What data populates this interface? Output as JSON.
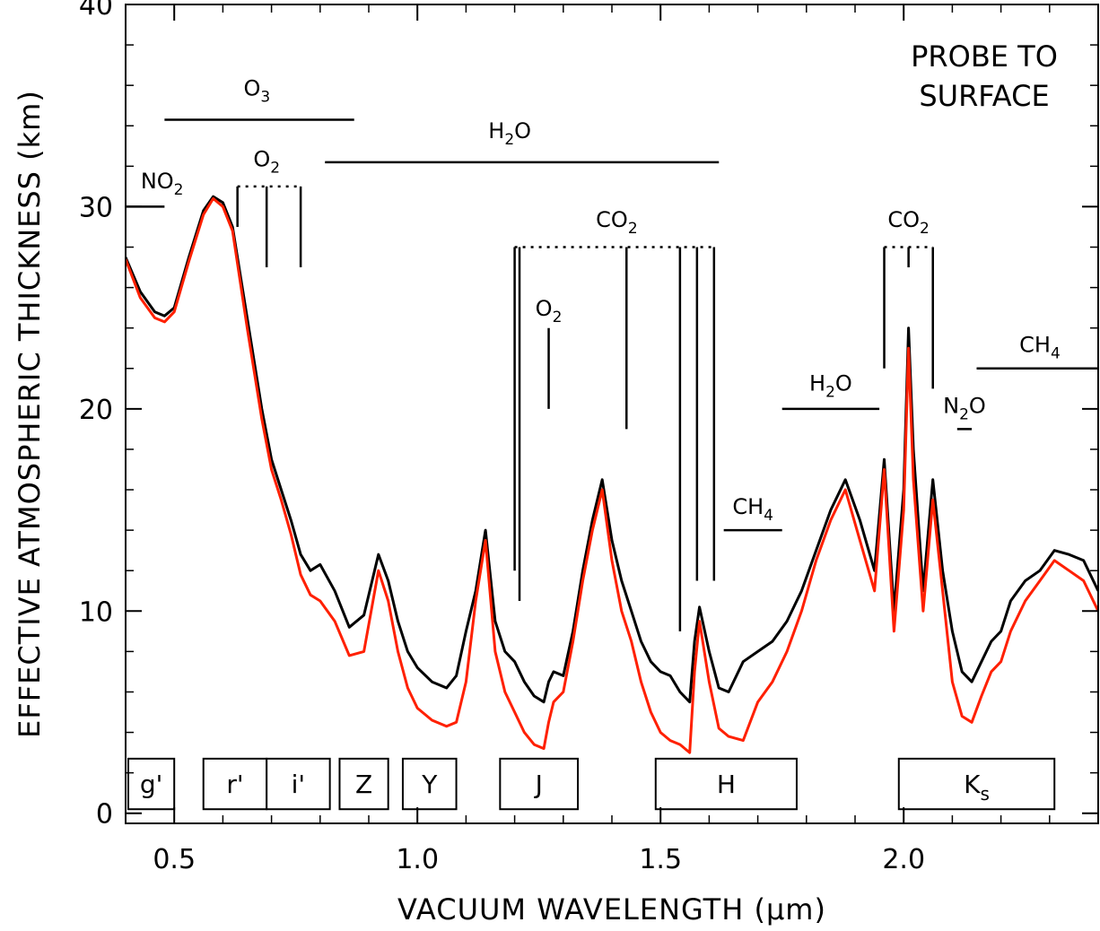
{
  "chart_data": {
    "type": "line",
    "title": "",
    "corner_text": [
      "PROBE TO",
      "SURFACE"
    ],
    "xlabel": "VACUUM WAVELENGTH (μm)",
    "ylabel": "EFFECTIVE ATMOSPHERIC THICKNESS (km)",
    "xlim": [
      0.4,
      2.4
    ],
    "ylim": [
      -0.5,
      40
    ],
    "x_ticks": [
      {
        "value": 0.5,
        "label": "0.5"
      },
      {
        "value": 1.0,
        "label": "1.0"
      },
      {
        "value": 1.5,
        "label": "1.5"
      },
      {
        "value": 2.0,
        "label": "2.0"
      }
    ],
    "y_ticks": [
      {
        "value": 0,
        "label": "0"
      },
      {
        "value": 10,
        "label": "10"
      },
      {
        "value": 20,
        "label": "20"
      },
      {
        "value": 30,
        "label": "30"
      },
      {
        "value": 40,
        "label": "40"
      }
    ],
    "grid": false,
    "colors": {
      "series_black": "#000000",
      "series_red": "#ff2000"
    },
    "series": [
      {
        "color": "#000000",
        "x": [
          0.4,
          0.43,
          0.46,
          0.48,
          0.5,
          0.53,
          0.56,
          0.58,
          0.6,
          0.62,
          0.65,
          0.68,
          0.7,
          0.72,
          0.74,
          0.76,
          0.78,
          0.8,
          0.83,
          0.86,
          0.89,
          0.92,
          0.94,
          0.96,
          0.98,
          1.0,
          1.03,
          1.06,
          1.08,
          1.1,
          1.12,
          1.14,
          1.16,
          1.18,
          1.2,
          1.22,
          1.24,
          1.26,
          1.27,
          1.28,
          1.3,
          1.32,
          1.34,
          1.36,
          1.38,
          1.4,
          1.42,
          1.44,
          1.46,
          1.48,
          1.5,
          1.52,
          1.54,
          1.56,
          1.57,
          1.58,
          1.6,
          1.62,
          1.64,
          1.67,
          1.7,
          1.73,
          1.76,
          1.79,
          1.82,
          1.85,
          1.88,
          1.91,
          1.94,
          1.96,
          1.98,
          2.0,
          2.01,
          2.02,
          2.04,
          2.06,
          2.08,
          2.1,
          2.12,
          2.14,
          2.16,
          2.18,
          2.2,
          2.22,
          2.25,
          2.28,
          2.31,
          2.34,
          2.37,
          2.4
        ],
        "y": [
          27.5,
          25.8,
          24.8,
          24.6,
          25.0,
          27.5,
          29.8,
          30.5,
          30.2,
          29.0,
          24.5,
          20.0,
          17.5,
          16.0,
          14.5,
          12.8,
          12.0,
          12.3,
          11.0,
          9.2,
          9.8,
          12.8,
          11.5,
          9.5,
          8.0,
          7.2,
          6.5,
          6.2,
          6.8,
          9.0,
          11.0,
          14.0,
          9.5,
          8.0,
          7.5,
          6.5,
          5.8,
          5.5,
          6.5,
          7.0,
          6.8,
          9.0,
          12.0,
          14.5,
          16.5,
          13.5,
          11.5,
          10.0,
          8.5,
          7.5,
          7.0,
          6.8,
          6.0,
          5.5,
          8.5,
          10.2,
          8.0,
          6.2,
          6.0,
          7.5,
          8.0,
          8.5,
          9.5,
          11.0,
          13.0,
          15.0,
          16.5,
          14.5,
          12.0,
          17.5,
          10.0,
          16.0,
          24.0,
          18.0,
          11.0,
          16.5,
          12.0,
          9.0,
          7.0,
          6.5,
          7.5,
          8.5,
          9.0,
          10.5,
          11.5,
          12.0,
          13.0,
          12.8,
          12.5,
          11.0
        ]
      },
      {
        "color": "#ff2000",
        "x": [
          0.4,
          0.43,
          0.46,
          0.48,
          0.5,
          0.53,
          0.56,
          0.58,
          0.6,
          0.62,
          0.65,
          0.68,
          0.7,
          0.72,
          0.74,
          0.76,
          0.78,
          0.8,
          0.83,
          0.86,
          0.89,
          0.92,
          0.94,
          0.96,
          0.98,
          1.0,
          1.03,
          1.06,
          1.08,
          1.1,
          1.12,
          1.14,
          1.16,
          1.18,
          1.2,
          1.22,
          1.24,
          1.26,
          1.27,
          1.28,
          1.3,
          1.32,
          1.34,
          1.36,
          1.38,
          1.4,
          1.42,
          1.44,
          1.46,
          1.48,
          1.5,
          1.52,
          1.54,
          1.56,
          1.57,
          1.58,
          1.6,
          1.62,
          1.64,
          1.67,
          1.7,
          1.73,
          1.76,
          1.79,
          1.82,
          1.85,
          1.88,
          1.91,
          1.94,
          1.96,
          1.98,
          2.0,
          2.01,
          2.02,
          2.04,
          2.06,
          2.08,
          2.1,
          2.12,
          2.14,
          2.16,
          2.18,
          2.2,
          2.22,
          2.25,
          2.28,
          2.31,
          2.34,
          2.37,
          2.4
        ],
        "y": [
          27.4,
          25.5,
          24.5,
          24.3,
          24.8,
          27.3,
          29.6,
          30.4,
          30.0,
          28.8,
          24.0,
          19.5,
          17.0,
          15.5,
          13.8,
          11.8,
          10.8,
          10.5,
          9.5,
          7.8,
          8.0,
          12.0,
          10.5,
          8.0,
          6.2,
          5.2,
          4.6,
          4.3,
          4.5,
          6.5,
          10.5,
          13.5,
          8.0,
          6.0,
          5.0,
          4.0,
          3.4,
          3.2,
          4.5,
          5.5,
          6.0,
          8.5,
          11.5,
          14.0,
          16.0,
          12.5,
          10.0,
          8.5,
          6.5,
          5.0,
          4.0,
          3.6,
          3.4,
          3.0,
          7.0,
          9.5,
          6.5,
          4.2,
          3.8,
          3.6,
          5.5,
          6.5,
          8.0,
          10.0,
          12.5,
          14.5,
          16.0,
          13.5,
          11.0,
          17.0,
          9.0,
          15.0,
          23.0,
          16.5,
          10.0,
          15.5,
          11.0,
          6.5,
          4.8,
          4.5,
          5.8,
          7.0,
          7.5,
          9.0,
          10.5,
          11.5,
          12.5,
          12.0,
          11.5,
          10.0
        ]
      }
    ],
    "absorbers": [
      {
        "label": "NO",
        "sub": "2",
        "style": "solid",
        "x1": 0.4,
        "x2": 0.48,
        "y": 30.0,
        "label_x": 0.475,
        "label_y": 30.9,
        "ticks": []
      },
      {
        "label": "O",
        "sub": "3",
        "style": "solid",
        "x1": 0.48,
        "x2": 0.87,
        "y": 34.3,
        "label_x": 0.67,
        "label_y": 35.5,
        "ticks": []
      },
      {
        "label": "O",
        "sub": "2",
        "style": "dotted",
        "x1": 0.63,
        "x2": 0.76,
        "y": 31.0,
        "label_x": 0.69,
        "label_y": 32.0,
        "ticks": [
          {
            "x": 0.63,
            "y_end": 29.0
          },
          {
            "x": 0.69,
            "y_end": 27.0
          },
          {
            "x": 0.76,
            "y_end": 27.0
          }
        ]
      },
      {
        "label": "H",
        "sub": "2",
        "after": "O",
        "style": "solid",
        "x1": 0.81,
        "x2": 1.62,
        "y": 32.2,
        "label_x": 1.19,
        "label_y": 33.4,
        "ticks": []
      },
      {
        "label": "CO",
        "sub": "2",
        "style": "dotted",
        "x1": 1.2,
        "x2": 1.61,
        "y": 28.0,
        "label_x": 1.41,
        "label_y": 29.0,
        "ticks": [
          {
            "x": 1.2,
            "y_end": 12.0
          },
          {
            "x": 1.21,
            "y_end": 10.5
          },
          {
            "x": 1.43,
            "y_end": 19.0
          },
          {
            "x": 1.54,
            "y_end": 9.0
          },
          {
            "x": 1.575,
            "y_end": 11.5
          },
          {
            "x": 1.61,
            "y_end": 11.5
          }
        ]
      },
      {
        "label": "O",
        "sub": "2",
        "style": "solid",
        "x1": 1.27,
        "x2": 1.27,
        "y": 24.0,
        "label_x": 1.27,
        "label_y": 24.6,
        "ticks": [
          {
            "x": 1.27,
            "y_end": 20.0
          }
        ]
      },
      {
        "label": "CH",
        "sub": "4",
        "style": "solid",
        "x1": 1.63,
        "x2": 1.75,
        "y": 14.0,
        "label_x": 1.69,
        "label_y": 14.8,
        "ticks": []
      },
      {
        "label": "H",
        "sub": "2",
        "after": "O",
        "style": "solid",
        "x1": 1.75,
        "x2": 1.95,
        "y": 20.0,
        "label_x": 1.85,
        "label_y": 20.9,
        "ticks": []
      },
      {
        "label": "CO",
        "sub": "2",
        "style": "dotted",
        "x1": 1.96,
        "x2": 2.06,
        "y": 28.0,
        "label_x": 2.01,
        "label_y": 29.0,
        "ticks": [
          {
            "x": 1.96,
            "y_end": 22.0
          },
          {
            "x": 2.01,
            "y_end": 27.0
          },
          {
            "x": 2.06,
            "y_end": 21.0
          }
        ]
      },
      {
        "label": "N",
        "sub": "2",
        "after": "O",
        "style": "solid",
        "x1": 2.11,
        "x2": 2.14,
        "y": 19.0,
        "label_x": 2.125,
        "label_y": 19.8,
        "ticks": []
      },
      {
        "label": "CH",
        "sub": "4",
        "style": "solid",
        "x1": 2.15,
        "x2": 2.4,
        "y": 22.0,
        "label_x": 2.28,
        "label_y": 22.8,
        "ticks": []
      }
    ],
    "filters": [
      {
        "label": "g'",
        "sub": "",
        "x1": 0.4,
        "x2": 0.5
      },
      {
        "label": "r'",
        "sub": "",
        "x1": 0.56,
        "x2": 0.69
      },
      {
        "label": "i'",
        "sub": "",
        "x1": 0.69,
        "x2": 0.82
      },
      {
        "label": "Z",
        "sub": "",
        "x1": 0.84,
        "x2": 0.94
      },
      {
        "label": "Y",
        "sub": "",
        "x1": 0.97,
        "x2": 1.08
      },
      {
        "label": "J",
        "sub": "",
        "x1": 1.17,
        "x2": 1.33
      },
      {
        "label": "H",
        "sub": "",
        "x1": 1.49,
        "x2": 1.78
      },
      {
        "label": "K",
        "sub": "s",
        "x1": 1.99,
        "x2": 2.31
      }
    ],
    "filter_y_range": [
      0.2,
      2.7
    ]
  }
}
